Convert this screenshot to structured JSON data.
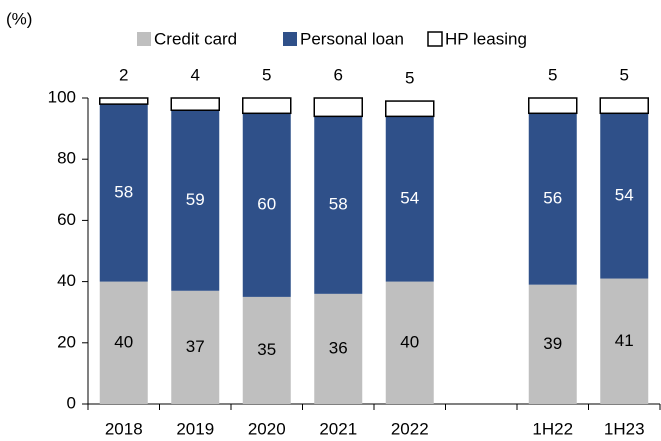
{
  "chart_data": {
    "type": "stacked_bar",
    "y_label": "(%)",
    "categories": [
      "2018",
      "2019",
      "2020",
      "2021",
      "2022",
      null,
      "1H22",
      "1H23"
    ],
    "series": [
      {
        "name": "Credit card",
        "color": "#bfbfbf",
        "values": [
          40,
          37,
          35,
          36,
          40,
          null,
          39,
          41
        ]
      },
      {
        "name": "Personal loan",
        "color": "#2f5089",
        "values": [
          58,
          59,
          60,
          58,
          54,
          null,
          56,
          54
        ]
      },
      {
        "name": "HP leasing",
        "color": "#ffffff",
        "values": [
          2,
          4,
          5,
          6,
          5,
          null,
          5,
          5
        ]
      }
    ],
    "ylim": [
      0,
      100
    ],
    "yticks": [
      0,
      20,
      40,
      60,
      80,
      100
    ],
    "grid": false,
    "legend": "top"
  }
}
